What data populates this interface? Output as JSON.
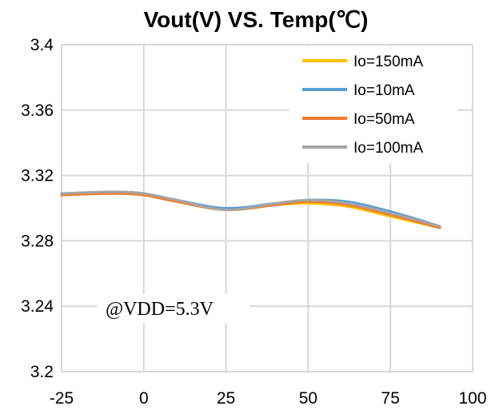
{
  "chart_data": {
    "type": "line",
    "title": "Vout(V) VS. Temp(℃)",
    "xlabel": "",
    "ylabel": "",
    "xlim": [
      -25,
      100
    ],
    "ylim": [
      3.2,
      3.4
    ],
    "x_ticks": [
      -25,
      0,
      25,
      50,
      75,
      100
    ],
    "x_tick_labels": [
      "-25",
      "0",
      "25",
      "50",
      "75",
      "100"
    ],
    "y_ticks": [
      3.2,
      3.24,
      3.28,
      3.32,
      3.36,
      3.4
    ],
    "y_tick_labels": [
      "3.2",
      "3.24",
      "3.28",
      "3.32",
      "3.36",
      "3.4"
    ],
    "grid": true,
    "legend_position": "top-right",
    "annotation": "@VDD=5.3V",
    "series": [
      {
        "name": "Io=150mA",
        "color": "#FFC000",
        "x": [
          -25,
          -10,
          0,
          10,
          25,
          40,
          50,
          62,
          75,
          90
        ],
        "y": [
          3.308,
          3.309,
          3.308,
          3.304,
          3.299,
          3.302,
          3.303,
          3.301,
          3.295,
          3.288
        ]
      },
      {
        "name": "Io=10mA",
        "color": "#5B9BD5",
        "x": [
          -25,
          -10,
          0,
          10,
          25,
          40,
          50,
          62,
          75,
          90
        ],
        "y": [
          3.309,
          3.31,
          3.309,
          3.305,
          3.3,
          3.303,
          3.305,
          3.304,
          3.298,
          3.289
        ]
      },
      {
        "name": "Io=50mA",
        "color": "#ED7D31",
        "x": [
          -25,
          -10,
          0,
          10,
          25,
          40,
          50,
          62,
          75,
          90
        ],
        "y": [
          3.308,
          3.309,
          3.308,
          3.304,
          3.299,
          3.302,
          3.304,
          3.302,
          3.296,
          3.288
        ]
      },
      {
        "name": "Io=100mA",
        "color": "#A5A5A5",
        "x": [
          -25,
          -10,
          0,
          10,
          25,
          40,
          50,
          62,
          75,
          90
        ],
        "y": [
          3.309,
          3.31,
          3.309,
          3.305,
          3.299,
          3.303,
          3.305,
          3.303,
          3.297,
          3.289
        ]
      }
    ]
  }
}
